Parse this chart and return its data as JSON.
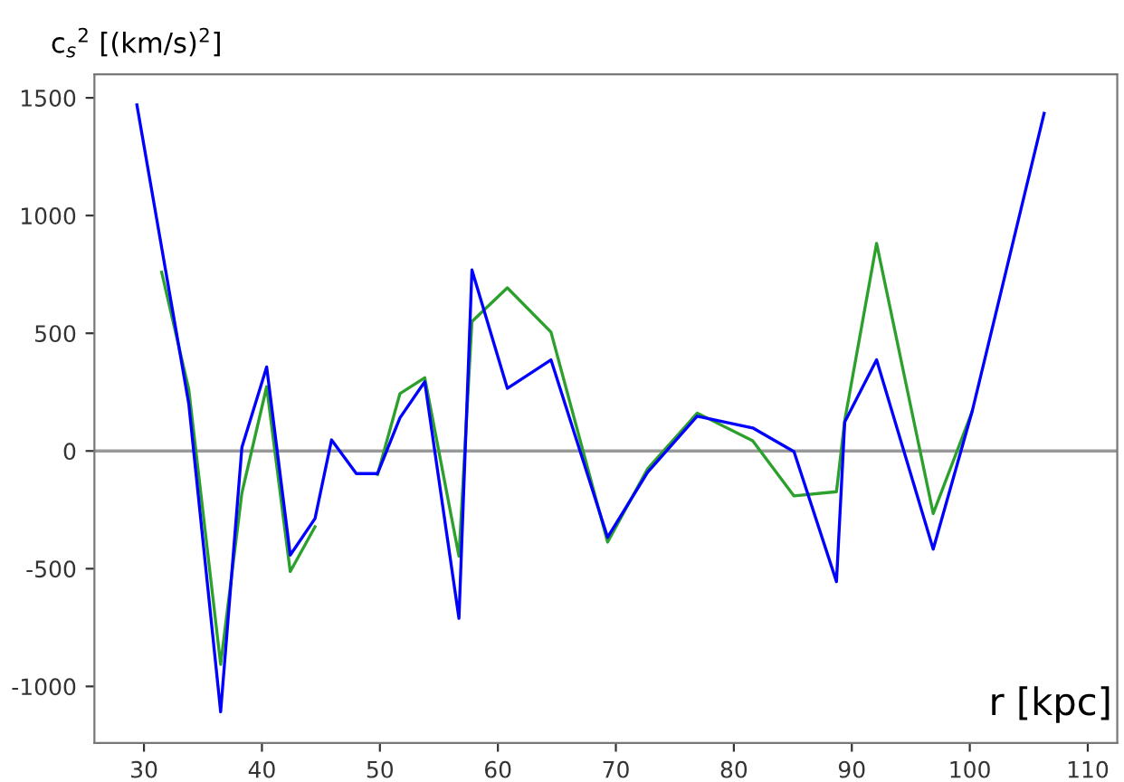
{
  "chart_data": {
    "type": "line",
    "xlabel": "r [kpc]",
    "ylabel": "c$_{s}$$^{2}$ [(km/s)$^{2}$]",
    "xlim": [
      25.8,
      112.5
    ],
    "ylim": [
      -1240,
      1600
    ],
    "xticks": [
      30,
      40,
      50,
      60,
      70,
      80,
      90,
      100,
      110
    ],
    "yticks": [
      -1000,
      -500,
      0,
      500,
      1000,
      1500
    ],
    "grid": false,
    "legend": false,
    "marker": "none",
    "line_style": "solid",
    "ref_lines": [
      {
        "axis": "y",
        "value": 0,
        "label": null,
        "color": "#999999"
      }
    ],
    "series": [
      {
        "color": "#2ca02c",
        "x": [
          31.5,
          33.8,
          36.5,
          38.3,
          40.4,
          42.4,
          44.5,
          45.9,
          48.0,
          49.8,
          51.7,
          53.8,
          56.7,
          57.8,
          60.8,
          64.5,
          69.3,
          72.7,
          76.9,
          81.6,
          85.1,
          88.7,
          89.4,
          92.1,
          96.9,
          100.2
        ],
        "values": [
          759,
          261,
          -907,
          -178,
          273,
          -512,
          -322,
          null,
          null,
          -100,
          244,
          311,
          -447,
          550,
          693,
          505,
          -387,
          -75,
          161,
          43,
          -191,
          -173,
          130,
          882,
          -266,
          168
        ]
      },
      {
        "color": "#0000ff",
        "x": [
          29.4,
          33.8,
          36.5,
          38.3,
          40.4,
          42.4,
          44.5,
          45.9,
          48.0,
          49.8,
          51.7,
          53.8,
          56.7,
          57.8,
          60.8,
          64.5,
          69.3,
          72.7,
          76.9,
          81.6,
          85.1,
          88.7,
          89.4,
          92.1,
          96.9,
          100.2,
          106.3
        ],
        "values": [
          1470,
          200,
          -1108,
          15,
          357,
          -442,
          -287,
          47,
          -96,
          -96,
          141,
          294,
          -711,
          769,
          266,
          387,
          -367,
          -90,
          148,
          98,
          -3,
          -555,
          123,
          387,
          -417,
          168,
          1434
        ]
      }
    ]
  }
}
